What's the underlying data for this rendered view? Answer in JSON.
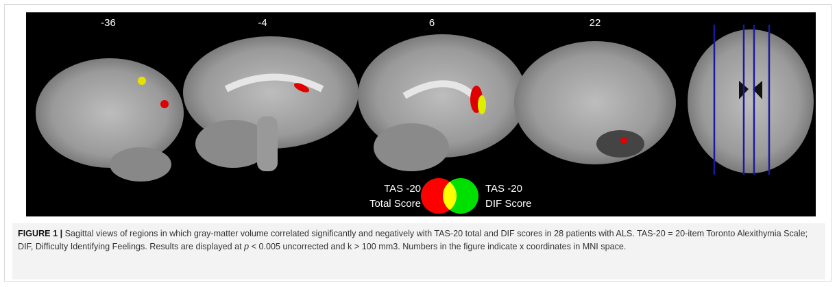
{
  "figure": {
    "slice_labels": [
      "-36",
      "-4",
      "6",
      "22"
    ],
    "legend": {
      "left": [
        "TAS -20",
        "Total Score"
      ],
      "right": [
        "TAS -20",
        "DIF Score"
      ]
    },
    "caption": {
      "label": "FIGURE 1 |",
      "segments": [
        "Sagittal views of regions in which gray-matter volume correlated significantly and negatively with TAS-20 total and DIF scores in 28 patients with ALS. TAS-20 = 20-item Toronto Alexithymia Scale; DIF, Difficulty Identifying Feelings. Results are displayed at ",
        "p",
        " < 0.005 uncorrected and k > 100 mm3. Numbers in the figure indicate x coordinates in MNI space."
      ]
    }
  }
}
